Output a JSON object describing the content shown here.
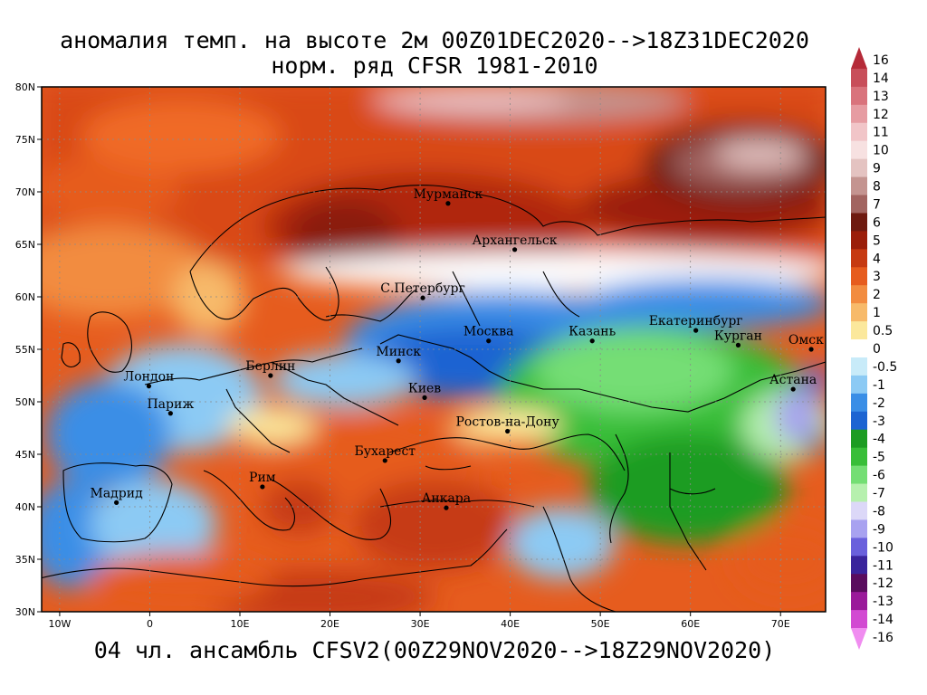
{
  "title": {
    "line1": "аномалия темп. на высоте 2м 00Z01DEC2020-->18Z31DEC2020",
    "line2": "норм. ряд CFSR 1981-2010"
  },
  "footer": "04 чл. ансамбль CFSV2(00Z29NOV2020-->18Z29NOV2020)",
  "map": {
    "lon_range": [
      -12,
      75
    ],
    "lat_range": [
      30,
      80
    ],
    "lat_ticks": [
      "30N",
      "35N",
      "40N",
      "45N",
      "50N",
      "55N",
      "60N",
      "65N",
      "70N",
      "75N",
      "80N"
    ],
    "lat_values": [
      30,
      35,
      40,
      45,
      50,
      55,
      60,
      65,
      70,
      75,
      80
    ],
    "lon_ticks": [
      "10W",
      "0",
      "10E",
      "20E",
      "30E",
      "40E",
      "50E",
      "60E",
      "70E"
    ],
    "lon_values": [
      -10,
      0,
      10,
      20,
      30,
      40,
      50,
      60,
      70
    ],
    "cities": [
      {
        "name": "Мурманск",
        "lon": 33.1,
        "lat": 68.9
      },
      {
        "name": "Архангельск",
        "lon": 40.5,
        "lat": 64.5
      },
      {
        "name": "С.Петербург",
        "lon": 30.3,
        "lat": 59.9
      },
      {
        "name": "Москва",
        "lon": 37.6,
        "lat": 55.8
      },
      {
        "name": "Казань",
        "lon": 49.1,
        "lat": 55.8
      },
      {
        "name": "Екатеринбург",
        "lon": 60.6,
        "lat": 56.8
      },
      {
        "name": "Курган",
        "lon": 65.3,
        "lat": 55.4
      },
      {
        "name": "Омск",
        "lon": 73.4,
        "lat": 55.0
      },
      {
        "name": "Астана",
        "lon": 71.4,
        "lat": 51.2
      },
      {
        "name": "Минск",
        "lon": 27.6,
        "lat": 53.9
      },
      {
        "name": "Берлин",
        "lon": 13.4,
        "lat": 52.5
      },
      {
        "name": "Лондон",
        "lon": -0.1,
        "lat": 51.5
      },
      {
        "name": "Париж",
        "lon": 2.3,
        "lat": 48.9
      },
      {
        "name": "Киев",
        "lon": 30.5,
        "lat": 50.4
      },
      {
        "name": "Ростов-на-Дону",
        "lon": 39.7,
        "lat": 47.2
      },
      {
        "name": "Бухарест",
        "lon": 26.1,
        "lat": 44.4
      },
      {
        "name": "Рим",
        "lon": 12.5,
        "lat": 41.9
      },
      {
        "name": "Мадрид",
        "lon": -3.7,
        "lat": 40.4
      },
      {
        "name": "Анкара",
        "lon": 32.9,
        "lat": 39.9
      }
    ]
  },
  "colorbar": {
    "labels": [
      "16",
      "14",
      "13",
      "12",
      "11",
      "10",
      "9",
      "8",
      "7",
      "6",
      "5",
      "4",
      "3",
      "2",
      "1",
      "0.5",
      "0",
      "-0.5",
      "-1",
      "-2",
      "-3",
      "-4",
      "-5",
      "-6",
      "-7",
      "-8",
      "-9",
      "-10",
      "-11",
      "-12",
      "-13",
      "-14",
      "-16"
    ],
    "colors": [
      "#b52a38",
      "#c84e5a",
      "#d9737c",
      "#e69ca2",
      "#f1c5c8",
      "#f7e1e1",
      "#e4c3c1",
      "#c49490",
      "#a26460",
      "#6e1a10",
      "#9b1e0a",
      "#c63a12",
      "#e65c1e",
      "#f28c40",
      "#f7ba6a",
      "#fbe89c",
      "#ffffff",
      "#c8ebf9",
      "#8ccaf4",
      "#3a8ee6",
      "#1c64d2",
      "#1c9c22",
      "#38be38",
      "#74de74",
      "#b6f0ae",
      "#dcd8f8",
      "#a8a2f0",
      "#6a60dc",
      "#3a249c",
      "#5a0c5e",
      "#9a1a9a",
      "#d24ad2",
      "#f08cf0"
    ]
  }
}
